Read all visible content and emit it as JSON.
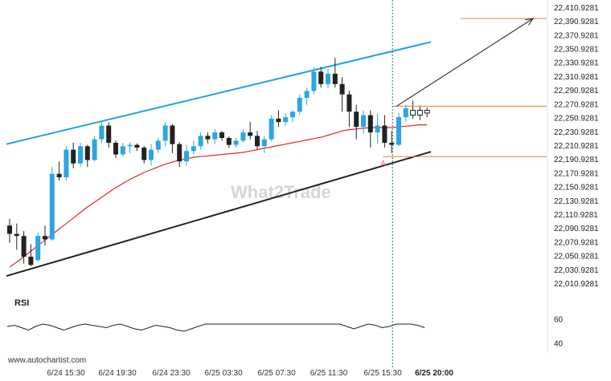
{
  "chart_data": {
    "type": "candlestick",
    "price_ticks": [
      "22,410.9281",
      "22,390.9281",
      "22,370.9281",
      "22,350.9281",
      "22,330.9281",
      "22,310.9281",
      "22,290.9281",
      "22,270.9281",
      "22,250.9281",
      "22,230.9281",
      "22,210.9281",
      "22,190.9281",
      "22,170.9281",
      "22,150.9281",
      "22,130.9281",
      "22,110.9281",
      "22,090.9281",
      "22,070.9281",
      "22,050.9281",
      "22,030.9281",
      "22,010.9281"
    ],
    "price_range": [
      22000,
      22416
    ],
    "time_ticks": [
      "6/24 15:30",
      "6/24 19:30",
      "6/24 23:30",
      "6/25 03:30",
      "6/25 07:30",
      "6/25 11:30",
      "6/25 15:30",
      "6/25 20:00"
    ],
    "highlight_time": "6/25 20:00",
    "candles": [
      [
        22095,
        22105,
        22070,
        22083
      ],
      [
        22083,
        22098,
        22060,
        22080
      ],
      [
        22080,
        22087,
        22040,
        22050
      ],
      [
        22050,
        22068,
        22036,
        22038
      ],
      [
        22045,
        22085,
        22043,
        22080
      ],
      [
        22080,
        22095,
        22066,
        22075
      ],
      [
        22075,
        22180,
        22073,
        22170
      ],
      [
        22170,
        22188,
        22160,
        22165
      ],
      [
        22165,
        22210,
        22160,
        22205
      ],
      [
        22205,
        22215,
        22178,
        22185
      ],
      [
        22185,
        22215,
        22180,
        22210
      ],
      [
        22210,
        22212,
        22180,
        22190
      ],
      [
        22190,
        22225,
        22188,
        22220
      ],
      [
        22220,
        22245,
        22215,
        22240
      ],
      [
        22240,
        22245,
        22208,
        22215
      ],
      [
        22215,
        22218,
        22193,
        22198
      ],
      [
        22198,
        22215,
        22195,
        22210
      ],
      [
        22210,
        22216,
        22200,
        22212
      ],
      [
        22212,
        22214,
        22203,
        22208
      ],
      [
        22208,
        22210,
        22185,
        22190
      ],
      [
        22190,
        22213,
        22182,
        22205
      ],
      [
        22205,
        22222,
        22200,
        22218
      ],
      [
        22218,
        22245,
        22210,
        22240
      ],
      [
        22240,
        22242,
        22200,
        22213
      ],
      [
        22213,
        22216,
        22180,
        22188
      ],
      [
        22188,
        22212,
        22182,
        22203
      ],
      [
        22203,
        22218,
        22198,
        22210
      ],
      [
        22210,
        22230,
        22205,
        22225
      ],
      [
        22225,
        22230,
        22214,
        22220
      ],
      [
        22220,
        22235,
        22213,
        22230
      ],
      [
        22230,
        22232,
        22218,
        22222
      ],
      [
        22222,
        22224,
        22208,
        22212
      ],
      [
        22212,
        22222,
        22208,
        22218
      ],
      [
        22218,
        22235,
        22215,
        22230
      ],
      [
        22230,
        22245,
        22220,
        22225
      ],
      [
        22225,
        22232,
        22205,
        22210
      ],
      [
        22210,
        22225,
        22200,
        22220
      ],
      [
        22220,
        22255,
        22217,
        22250
      ],
      [
        22250,
        22262,
        22238,
        22245
      ],
      [
        22245,
        22258,
        22240,
        22252
      ],
      [
        22252,
        22262,
        22245,
        22260
      ],
      [
        22260,
        22285,
        22255,
        22280
      ],
      [
        22280,
        22295,
        22270,
        22290
      ],
      [
        22290,
        22325,
        22285,
        22318
      ],
      [
        22318,
        22325,
        22295,
        22300
      ],
      [
        22300,
        22322,
        22294,
        22315
      ],
      [
        22315,
        22338,
        22295,
        22300
      ],
      [
        22300,
        22310,
        22260,
        22285
      ],
      [
        22285,
        22290,
        22238,
        22260
      ],
      [
        22260,
        22270,
        22220,
        22238
      ],
      [
        22238,
        22262,
        22228,
        22255
      ],
      [
        22255,
        22262,
        22208,
        22230
      ],
      [
        22230,
        22257,
        22213,
        22240
      ],
      [
        22240,
        22255,
        22208,
        22215
      ],
      [
        22215,
        22232,
        22200,
        22212
      ],
      [
        22212,
        22258,
        22210,
        22252
      ],
      [
        22252,
        22270,
        22245,
        22265
      ],
      [
        22262,
        22276,
        22250,
        22255
      ],
      [
        22255,
        22268,
        22248,
        22262
      ],
      [
        22262,
        22266,
        22252,
        22258
      ]
    ],
    "ma_values": [
      22035,
      22042,
      22050,
      22058,
      22066,
      22074,
      22082,
      22090,
      22098,
      22106,
      22114,
      22122,
      22129,
      22136,
      22143,
      22150,
      22156,
      22162,
      22167,
      22172,
      22176,
      22180,
      22184,
      22187,
      22190,
      22192,
      22194,
      22195,
      22196,
      22197,
      22198,
      22199,
      22200,
      22201,
      22203,
      22205,
      22207,
      22209,
      22211,
      22213,
      22215,
      22217,
      22219,
      22221,
      22223,
      22226,
      22229,
      22232,
      22234,
      22235,
      22236,
      22237,
      22237,
      22237,
      22237,
      22238,
      22239,
      22240,
      22241,
      22241
    ],
    "channel_upper": [
      [
        0,
        22213
      ],
      [
        60,
        22361
      ]
    ],
    "channel_lower": [
      [
        0,
        22022
      ],
      [
        60,
        22202
      ]
    ],
    "resistance_level": 22268,
    "support_level": 22195,
    "target_level": 22395,
    "marker_label": "A",
    "watermark": "What2Trade",
    "rsi": {
      "title": "RSI",
      "ticks": [
        "60",
        "40"
      ],
      "range": [
        30,
        70
      ],
      "values": [
        54,
        55,
        53,
        51,
        54,
        56,
        55,
        53,
        51,
        53,
        55,
        56,
        55,
        54,
        53,
        55,
        56,
        54,
        52,
        51,
        53,
        55,
        54,
        53,
        51,
        50,
        52,
        54,
        56,
        56,
        56,
        56,
        56,
        56,
        56,
        56,
        56,
        56,
        56,
        56,
        56,
        56,
        56,
        56,
        56,
        56,
        56,
        56,
        54,
        52,
        54,
        56,
        55,
        53,
        54,
        56,
        56,
        56,
        55,
        53
      ]
    },
    "colors": {
      "bull": "#2ba6e0",
      "bear": "#222222",
      "ma": "#e3262a",
      "upper": "#1ea3db",
      "lower": "#222222",
      "level": "#f07a45",
      "arrow": "#222222",
      "vline": "#1a7a5e"
    }
  },
  "footer": {
    "site": "www.autochartist.com"
  }
}
